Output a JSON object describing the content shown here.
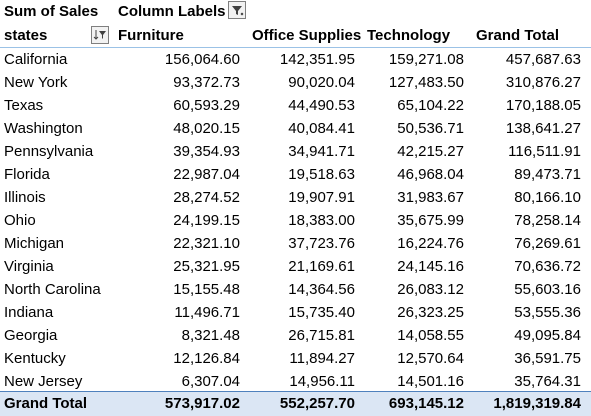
{
  "header": {
    "values_label": "Sum of Sales",
    "column_labels": "Column Labels",
    "row_field": "states",
    "columns": [
      "Furniture",
      "Office Supplies",
      "Technology",
      "Grand Total"
    ]
  },
  "icons": {
    "column_filter": "filter-icon",
    "row_filter": "sort-filter-icon"
  },
  "rows": [
    {
      "state": "California",
      "furniture": "156,064.60",
      "office": "142,351.95",
      "tech": "159,271.08",
      "total": "457,687.63"
    },
    {
      "state": "New York",
      "furniture": "93,372.73",
      "office": "90,020.04",
      "tech": "127,483.50",
      "total": "310,876.27"
    },
    {
      "state": "Texas",
      "furniture": "60,593.29",
      "office": "44,490.53",
      "tech": "65,104.22",
      "total": "170,188.05"
    },
    {
      "state": "Washington",
      "furniture": "48,020.15",
      "office": "40,084.41",
      "tech": "50,536.71",
      "total": "138,641.27"
    },
    {
      "state": "Pennsylvania",
      "furniture": "39,354.93",
      "office": "34,941.71",
      "tech": "42,215.27",
      "total": "116,511.91"
    },
    {
      "state": "Florida",
      "furniture": "22,987.04",
      "office": "19,518.63",
      "tech": "46,968.04",
      "total": "89,473.71"
    },
    {
      "state": "Illinois",
      "furniture": "28,274.52",
      "office": "19,907.91",
      "tech": "31,983.67",
      "total": "80,166.10"
    },
    {
      "state": "Ohio",
      "furniture": "24,199.15",
      "office": "18,383.00",
      "tech": "35,675.99",
      "total": "78,258.14"
    },
    {
      "state": "Michigan",
      "furniture": "22,321.10",
      "office": "37,723.76",
      "tech": "16,224.76",
      "total": "76,269.61"
    },
    {
      "state": "Virginia",
      "furniture": "25,321.95",
      "office": "21,169.61",
      "tech": "24,145.16",
      "total": "70,636.72"
    },
    {
      "state": "North Carolina",
      "furniture": "15,155.48",
      "office": "14,364.56",
      "tech": "26,083.12",
      "total": "55,603.16"
    },
    {
      "state": "Indiana",
      "furniture": "11,496.71",
      "office": "15,735.40",
      "tech": "26,323.25",
      "total": "53,555.36"
    },
    {
      "state": "Georgia",
      "furniture": "8,321.48",
      "office": "26,715.81",
      "tech": "14,058.55",
      "total": "49,095.84"
    },
    {
      "state": "Kentucky",
      "furniture": "12,126.84",
      "office": "11,894.27",
      "tech": "12,570.64",
      "total": "36,591.75"
    },
    {
      "state": "New Jersey",
      "furniture": "6,307.04",
      "office": "14,956.11",
      "tech": "14,501.16",
      "total": "35,764.31"
    }
  ],
  "grand_total": {
    "label": "Grand Total",
    "furniture": "573,917.02",
    "office": "552,257.70",
    "tech": "693,145.12",
    "total": "1,819,319.84"
  },
  "colors": {
    "grand_total_fill": "#dbe6f4",
    "grand_total_border": "#4f81bd",
    "header_border": "#9bc2e6"
  }
}
